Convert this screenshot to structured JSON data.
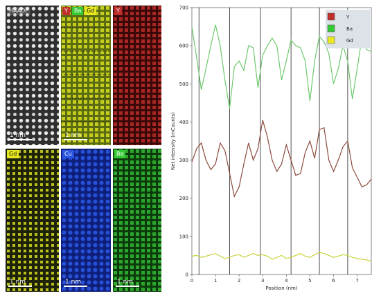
{
  "panels": {
    "haadf": {
      "labels": [
        "HAADF"
      ],
      "scale": "1 nm"
    },
    "ybagd": {
      "labels": [
        "Y",
        "Ba",
        "Gd"
      ],
      "scale": "1 nm"
    },
    "y": {
      "labels": [
        "Y"
      ],
      "scale": "1 nm"
    },
    "gd": {
      "labels": [
        "Gd"
      ],
      "scale": "1 nm"
    },
    "cu": {
      "labels": [
        "Cu"
      ],
      "scale": "1 nm"
    },
    "ba": {
      "labels": [
        "Ba"
      ],
      "scale": "1 nm"
    }
  },
  "colors": {
    "Y": "#c0302b",
    "Ba": "#36c936",
    "Gd": "#e8e820",
    "Cu": "#2a55e0",
    "Y_line": "#8b4a3a",
    "Ba_line": "#6cc86c",
    "Gd_line": "#c8d23c"
  },
  "chart_data": {
    "type": "line",
    "xlabel": "Position (nm)",
    "ylabel": "Net intensity (mCounts)",
    "xlim": [
      0,
      7.6
    ],
    "ylim": [
      0,
      700
    ],
    "xticks": [
      "0",
      "1",
      "2",
      "3",
      "4",
      "5",
      "6",
      "7"
    ],
    "yticks": [
      "0",
      "100",
      "200",
      "300",
      "400",
      "500",
      "600",
      "700"
    ],
    "grid": false,
    "legend_position": "top-right",
    "vlines": [
      0.3,
      1.6,
      2.9,
      4.2,
      5.4,
      6.6
    ],
    "series": [
      {
        "name": "Y",
        "x": [
          0,
          0.2,
          0.4,
          0.6,
          0.8,
          1.0,
          1.2,
          1.4,
          1.6,
          1.8,
          2.0,
          2.2,
          2.4,
          2.6,
          2.8,
          3.0,
          3.2,
          3.4,
          3.6,
          3.8,
          4.0,
          4.2,
          4.4,
          4.6,
          4.8,
          5.0,
          5.2,
          5.4,
          5.6,
          5.8,
          6.0,
          6.2,
          6.4,
          6.6,
          6.8,
          7.0,
          7.2,
          7.4,
          7.6
        ],
        "values": [
          295,
          330,
          345,
          300,
          275,
          290,
          345,
          325,
          265,
          205,
          230,
          290,
          345,
          300,
          330,
          405,
          360,
          300,
          270,
          290,
          340,
          300,
          260,
          265,
          320,
          350,
          305,
          380,
          385,
          300,
          270,
          300,
          335,
          350,
          280,
          255,
          230,
          235,
          250
        ]
      },
      {
        "name": "Ba",
        "x": [
          0,
          0.2,
          0.4,
          0.6,
          0.8,
          1.0,
          1.2,
          1.4,
          1.6,
          1.8,
          2.0,
          2.2,
          2.4,
          2.6,
          2.8,
          3.0,
          3.2,
          3.4,
          3.6,
          3.8,
          4.0,
          4.2,
          4.4,
          4.6,
          4.8,
          5.0,
          5.2,
          5.4,
          5.6,
          5.8,
          6.0,
          6.2,
          6.4,
          6.6,
          6.8,
          7.0,
          7.2,
          7.4,
          7.6
        ],
        "values": [
          650,
          570,
          485,
          540,
          600,
          655,
          600,
          510,
          435,
          545,
          560,
          535,
          600,
          595,
          490,
          575,
          600,
          620,
          600,
          510,
          560,
          615,
          600,
          595,
          560,
          455,
          560,
          625,
          610,
          580,
          500,
          540,
          600,
          560,
          460,
          540,
          620,
          590,
          585
        ]
      },
      {
        "name": "Gd",
        "x": [
          0,
          0.2,
          0.4,
          0.6,
          0.8,
          1.0,
          1.2,
          1.4,
          1.6,
          1.8,
          2.0,
          2.2,
          2.4,
          2.6,
          2.8,
          3.0,
          3.2,
          3.4,
          3.6,
          3.8,
          4.0,
          4.2,
          4.4,
          4.6,
          4.8,
          5.0,
          5.2,
          5.4,
          5.6,
          5.8,
          6.0,
          6.2,
          6.4,
          6.6,
          6.8,
          7.0,
          7.2,
          7.4,
          7.6
        ],
        "values": [
          48,
          50,
          45,
          48,
          52,
          55,
          48,
          42,
          45,
          50,
          52,
          45,
          50,
          55,
          50,
          52,
          48,
          40,
          45,
          50,
          42,
          45,
          50,
          55,
          48,
          45,
          52,
          58,
          55,
          50,
          45,
          48,
          52,
          50,
          45,
          42,
          40,
          38,
          35
        ]
      }
    ]
  }
}
